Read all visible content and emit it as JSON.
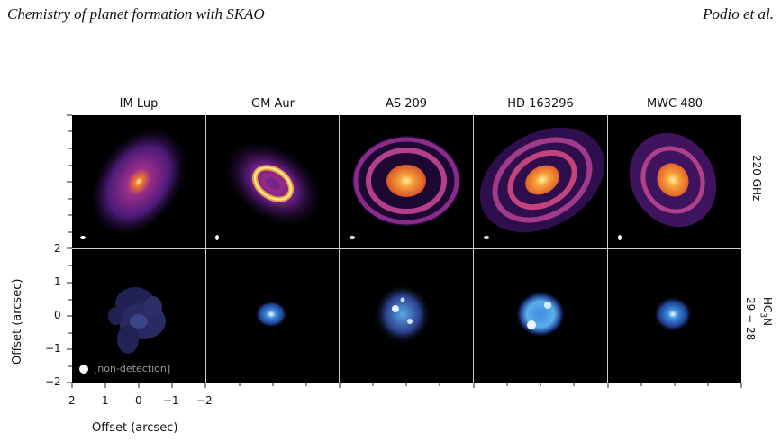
{
  "header": {
    "left": "Chemistry of planet formation with SKAO",
    "right": "Podio et al."
  },
  "columns": [
    "IM Lup",
    "GM Aur",
    "AS 209",
    "HD 163296",
    "MWC 480"
  ],
  "rows": {
    "top": "220 GHz",
    "bottom_main": "HC",
    "bottom_sub": "3",
    "bottom_tail": "N",
    "bottom_line2": "29 − 28"
  },
  "axes": {
    "ylabel": "Offset (arcsec)",
    "xlabel": "Offset (arcsec)",
    "yticks": [
      "2",
      "1",
      "0",
      "−1",
      "−2"
    ],
    "xticks": [
      "2",
      "1",
      "0",
      "−1",
      "−2"
    ]
  },
  "annotation": "[non-detection]",
  "colors": {
    "continuum_core": "#fff3a8",
    "continuum_mid": "#e8722a",
    "continuum_outer": "#6a1f8a",
    "line_core": "#ffffff",
    "line_mid": "#3a8fe0",
    "line_outer": "#2a2a6a"
  }
}
